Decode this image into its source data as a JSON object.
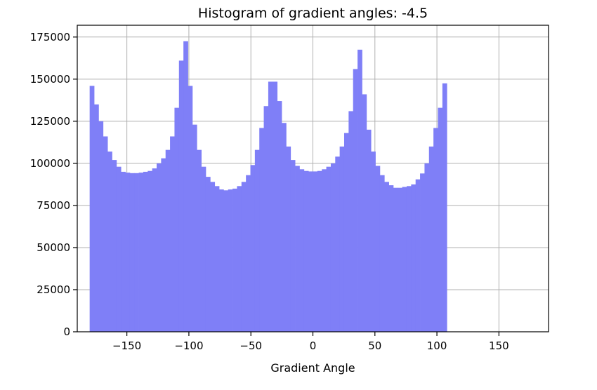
{
  "chart_data": {
    "type": "bar",
    "title": "Histogram of gradient angles: -4.5",
    "xlabel": "Gradient Angle",
    "ylabel": "",
    "xlim": [
      -190,
      190
    ],
    "ylim": [
      0,
      182000
    ],
    "bin_start": -180,
    "bin_width": 3.6,
    "bar_color": "#7f7ff7",
    "grid": true,
    "xticks": [
      -150,
      -100,
      -50,
      0,
      50,
      100,
      150
    ],
    "xtick_labels": [
      "−150",
      "−100",
      "−50",
      "0",
      "50",
      "100",
      "150"
    ],
    "yticks": [
      0,
      25000,
      50000,
      75000,
      100000,
      125000,
      150000,
      175000
    ],
    "ytick_labels": [
      "0",
      "25000",
      "50000",
      "75000",
      "100000",
      "125000",
      "150000",
      "175000"
    ],
    "values": [
      146000,
      135000,
      125000,
      116000,
      107000,
      102000,
      98000,
      95000,
      94500,
      94200,
      94200,
      94500,
      95000,
      95500,
      97000,
      100000,
      103000,
      108000,
      116000,
      133000,
      161000,
      172500,
      146000,
      123000,
      108000,
      98000,
      92000,
      89000,
      86500,
      84500,
      84000,
      84500,
      85000,
      86500,
      89000,
      93000,
      99000,
      108000,
      121000,
      134000,
      148500,
      148500,
      137000,
      124000,
      110000,
      102000,
      98500,
      96500,
      95500,
      95200,
      95200,
      95500,
      96500,
      98000,
      100000,
      104000,
      110000,
      118000,
      131000,
      156000,
      167500,
      141000,
      120000,
      107000,
      98500,
      93000,
      89000,
      87000,
      85500,
      85500,
      86000,
      86500,
      87500,
      90500,
      94000,
      100000,
      110000,
      121000,
      133000,
      147500
    ]
  }
}
